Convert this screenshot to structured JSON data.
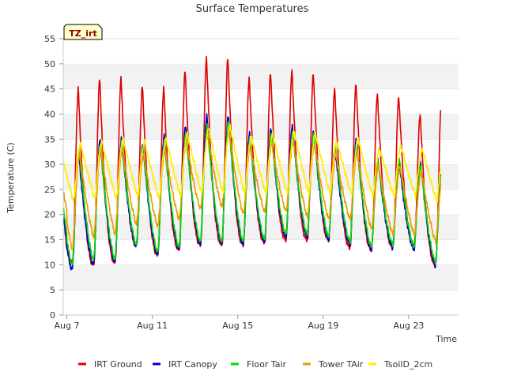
{
  "chart_data": {
    "type": "line",
    "title": "Surface Temperatures",
    "xlabel": "Time",
    "ylabel": "Temperature (C)",
    "ylim": [
      0,
      55
    ],
    "yticks": [
      0,
      5,
      10,
      15,
      20,
      25,
      30,
      35,
      40,
      45,
      50,
      55
    ],
    "xlim": [
      "2023-08-06T20:00",
      "2023-08-25T08:00"
    ],
    "xticks": [
      {
        "date": "2023-08-07",
        "label": "Aug 7"
      },
      {
        "date": "2023-08-11",
        "label": "Aug 11"
      },
      {
        "date": "2023-08-15",
        "label": "Aug 15"
      },
      {
        "date": "2023-08-19",
        "label": "Aug 19"
      },
      {
        "date": "2023-08-23",
        "label": "Aug 23"
      }
    ],
    "grid": "horizontal bands",
    "legend_position": "bottom",
    "site_label": "TZ_irt",
    "dates": [
      "Aug 7",
      "Aug 8",
      "Aug 9",
      "Aug 10",
      "Aug 11",
      "Aug 12",
      "Aug 13",
      "Aug 14",
      "Aug 15",
      "Aug 16",
      "Aug 17",
      "Aug 18",
      "Aug 19",
      "Aug 20",
      "Aug 21",
      "Aug 22",
      "Aug 23",
      "Aug 24"
    ],
    "series": [
      {
        "name": "IRT Ground",
        "color": "#dd0000",
        "daily_max": [
          45,
          47,
          47,
          45.5,
          45,
          48.5,
          51,
          51,
          47,
          48,
          48.5,
          48,
          45,
          46,
          44,
          43.5,
          40,
          43.5
        ],
        "daily_min": [
          10.5,
          10,
          10.5,
          14,
          12,
          13,
          14,
          14,
          14,
          14.5,
          15,
          15,
          15,
          13.5,
          13,
          13.5,
          14,
          10
        ]
      },
      {
        "name": "IRT Canopy",
        "color": "#0000cc",
        "daily_max": [
          32,
          35,
          35,
          34,
          35.5,
          37.5,
          39.5,
          39.5,
          36,
          37,
          37.5,
          36.5,
          33,
          35,
          31,
          30.5,
          30.5,
          30
        ],
        "daily_min": [
          9,
          10,
          10.5,
          13.5,
          12,
          13,
          14,
          14,
          14,
          14.5,
          15.5,
          15.5,
          15,
          14,
          13,
          13.5,
          13,
          10
        ]
      },
      {
        "name": "Floor Tair",
        "color": "#00dd00",
        "daily_max": [
          33,
          34,
          34.5,
          33.5,
          34.5,
          36,
          37.5,
          38.5,
          35,
          36,
          36,
          36,
          33.5,
          34,
          30.5,
          31,
          29.5,
          30
        ],
        "daily_min": [
          10,
          11,
          11,
          14,
          12.5,
          13.5,
          14.5,
          14.5,
          14.5,
          15,
          16,
          16,
          15.5,
          14.5,
          13.5,
          14,
          13.5,
          10.5
        ]
      },
      {
        "name": "Tower TAir",
        "color": "#ee9900",
        "daily_max": [
          32,
          33,
          33,
          32,
          33,
          34.5,
          36,
          36.5,
          33.5,
          34,
          34.5,
          34,
          32,
          32.5,
          29.5,
          29.5,
          28.5,
          28.5
        ],
        "daily_min": [
          13,
          15.5,
          16,
          18,
          17.5,
          19,
          21,
          21.5,
          20,
          20.5,
          20.5,
          19.5,
          19,
          19,
          17,
          16,
          16,
          14.5
        ]
      },
      {
        "name": "TsoilD_2cm",
        "color": "#ffee00",
        "daily_max": [
          34,
          34.5,
          35,
          34.5,
          35,
          36,
          37,
          37.5,
          35.5,
          36,
          36.5,
          36,
          34.5,
          35,
          33,
          33.5,
          33,
          33
        ],
        "daily_min": [
          22.5,
          23,
          23,
          23.5,
          23,
          23.5,
          24,
          24,
          24,
          24,
          24,
          24,
          24,
          24,
          23.5,
          23.5,
          23.5,
          22.5
        ]
      }
    ]
  }
}
